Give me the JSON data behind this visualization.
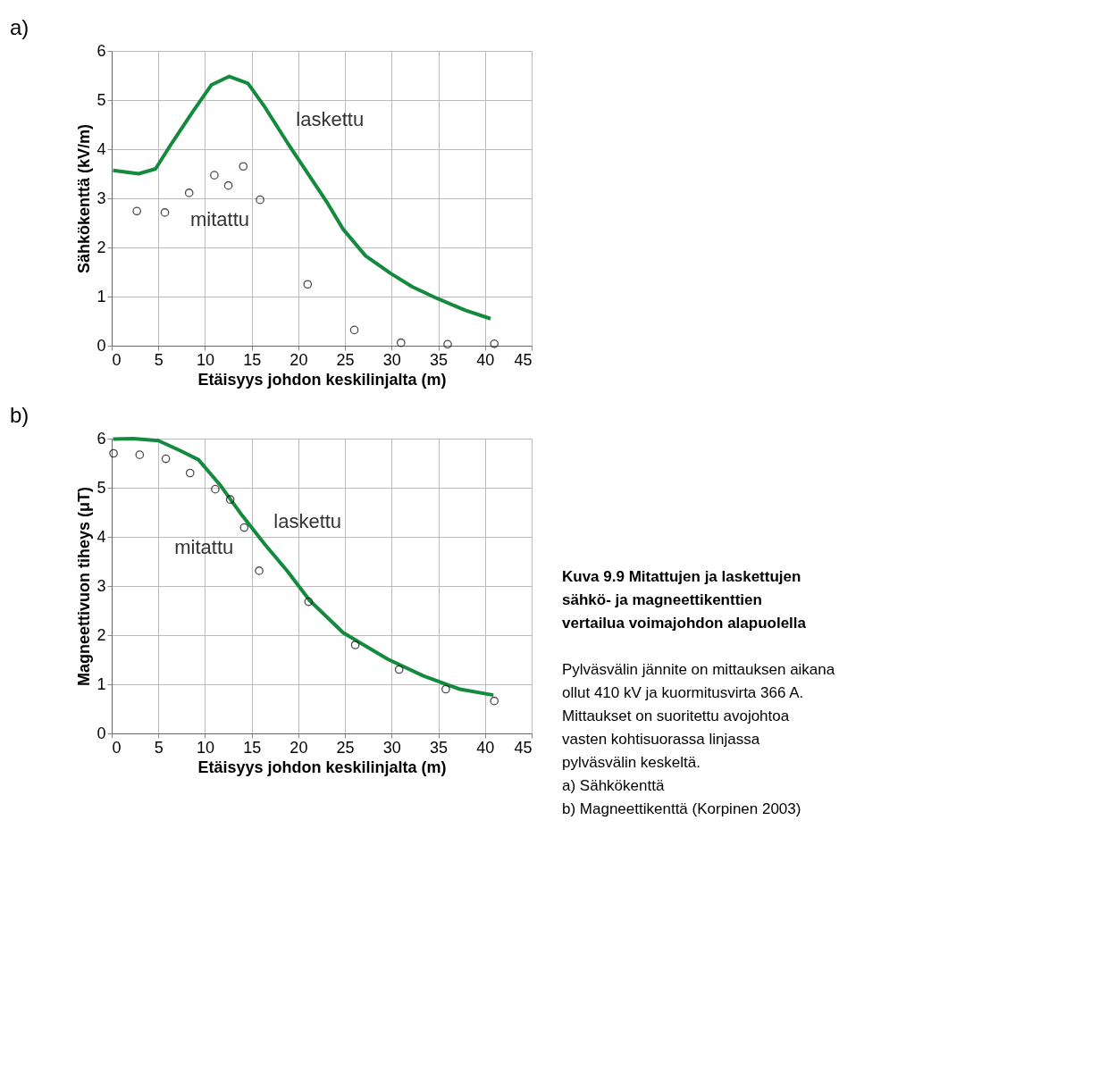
{
  "chart_data": [
    {
      "type": "line",
      "title": "a)",
      "xlabel": "Etäisyys johdon keskilinjalta (m)",
      "ylabel": "Sähkökenttä (kV/m)",
      "xlim": [
        0,
        45
      ],
      "xticks": [
        0,
        5,
        10,
        15,
        20,
        25,
        30,
        35,
        40,
        45
      ],
      "ylim": [
        0,
        6
      ],
      "yticks": [
        0,
        1,
        2,
        3,
        4,
        5,
        6
      ],
      "grid": true,
      "legend": false,
      "series": [
        {
          "name": "laskettu",
          "type": "line",
          "color": "#138a3e",
          "marker": "none",
          "x": [
            0.15,
            2.9,
            4.7,
            6.5,
            8.6,
            10.7,
            12.6,
            14.6,
            16.4,
            18.8,
            20.9,
            23.0,
            24.8,
            27.2,
            29.9,
            32.2,
            34.9,
            37.9,
            40.6
          ],
          "values": [
            3.57,
            3.5,
            3.6,
            4.14,
            4.74,
            5.31,
            5.48,
            5.34,
            4.86,
            4.14,
            3.54,
            2.94,
            2.37,
            1.83,
            1.47,
            1.2,
            0.96,
            0.72,
            0.55
          ]
        },
        {
          "name": "mitattu",
          "type": "scatter",
          "color": "#000000",
          "marker": "circle",
          "x": [
            2.7,
            5.7,
            8.3,
            11.0,
            12.5,
            14.1,
            15.9,
            21.0,
            26.0,
            31.0,
            36.0,
            41.0
          ],
          "values": [
            2.74,
            2.71,
            3.11,
            3.47,
            3.26,
            3.65,
            2.97,
            1.25,
            0.32,
            0.06,
            0.03,
            0.04
          ]
        }
      ]
    },
    {
      "type": "line",
      "title": "b)",
      "xlabel": "Etäisyys johdon keskilinjalta (m)",
      "ylabel": "Magneettivuon tiheys (μT)",
      "xlim": [
        0,
        45
      ],
      "xticks": [
        0,
        5,
        10,
        15,
        20,
        25,
        30,
        35,
        40,
        45
      ],
      "ylim": [
        0,
        6
      ],
      "yticks": [
        0,
        1,
        2,
        3,
        4,
        5,
        6
      ],
      "grid": true,
      "legend": false,
      "series": [
        {
          "name": "laskettu",
          "type": "line",
          "color": "#138a3e",
          "marker": "none",
          "x": [
            0.15,
            2.3,
            5.0,
            7.4,
            9.3,
            11.6,
            14.0,
            16.4,
            18.8,
            21.2,
            24.8,
            29.6,
            33.4,
            37.3,
            40.9
          ],
          "values": [
            5.99,
            6.0,
            5.96,
            5.75,
            5.57,
            5.06,
            4.43,
            3.85,
            3.31,
            2.71,
            2.05,
            1.51,
            1.17,
            0.9,
            0.78
          ]
        },
        {
          "name": "mitattu",
          "type": "scatter",
          "color": "#000000",
          "marker": "circle",
          "x": [
            0.2,
            3.0,
            5.8,
            8.4,
            11.1,
            12.7,
            14.2,
            15.8,
            21.1,
            26.1,
            30.8,
            35.8,
            41.0
          ],
          "values": [
            5.7,
            5.67,
            5.59,
            5.3,
            4.97,
            4.76,
            4.19,
            3.31,
            2.68,
            1.8,
            1.3,
            0.9,
            0.66
          ]
        }
      ]
    },
    {
      "type": "other",
      "title": "Kuva 9.9 Mitattujen ja laskettujen sähkö- ja magneettikenttien vertailua voimajohdon alapuolella",
      "annotations": [
        "Pylväsvälin jännite on mittauksen aikana ollut 410 kV ja kuormitusvirta 366 A. Mittaukset on suoritettu avojohtoa vasten kohtisuorassa linjassa pylväsvälin keskeltä.",
        "a) Sähkökenttä",
        "b) Magneettikenttä  (Korpinen  2003)"
      ]
    }
  ]
}
